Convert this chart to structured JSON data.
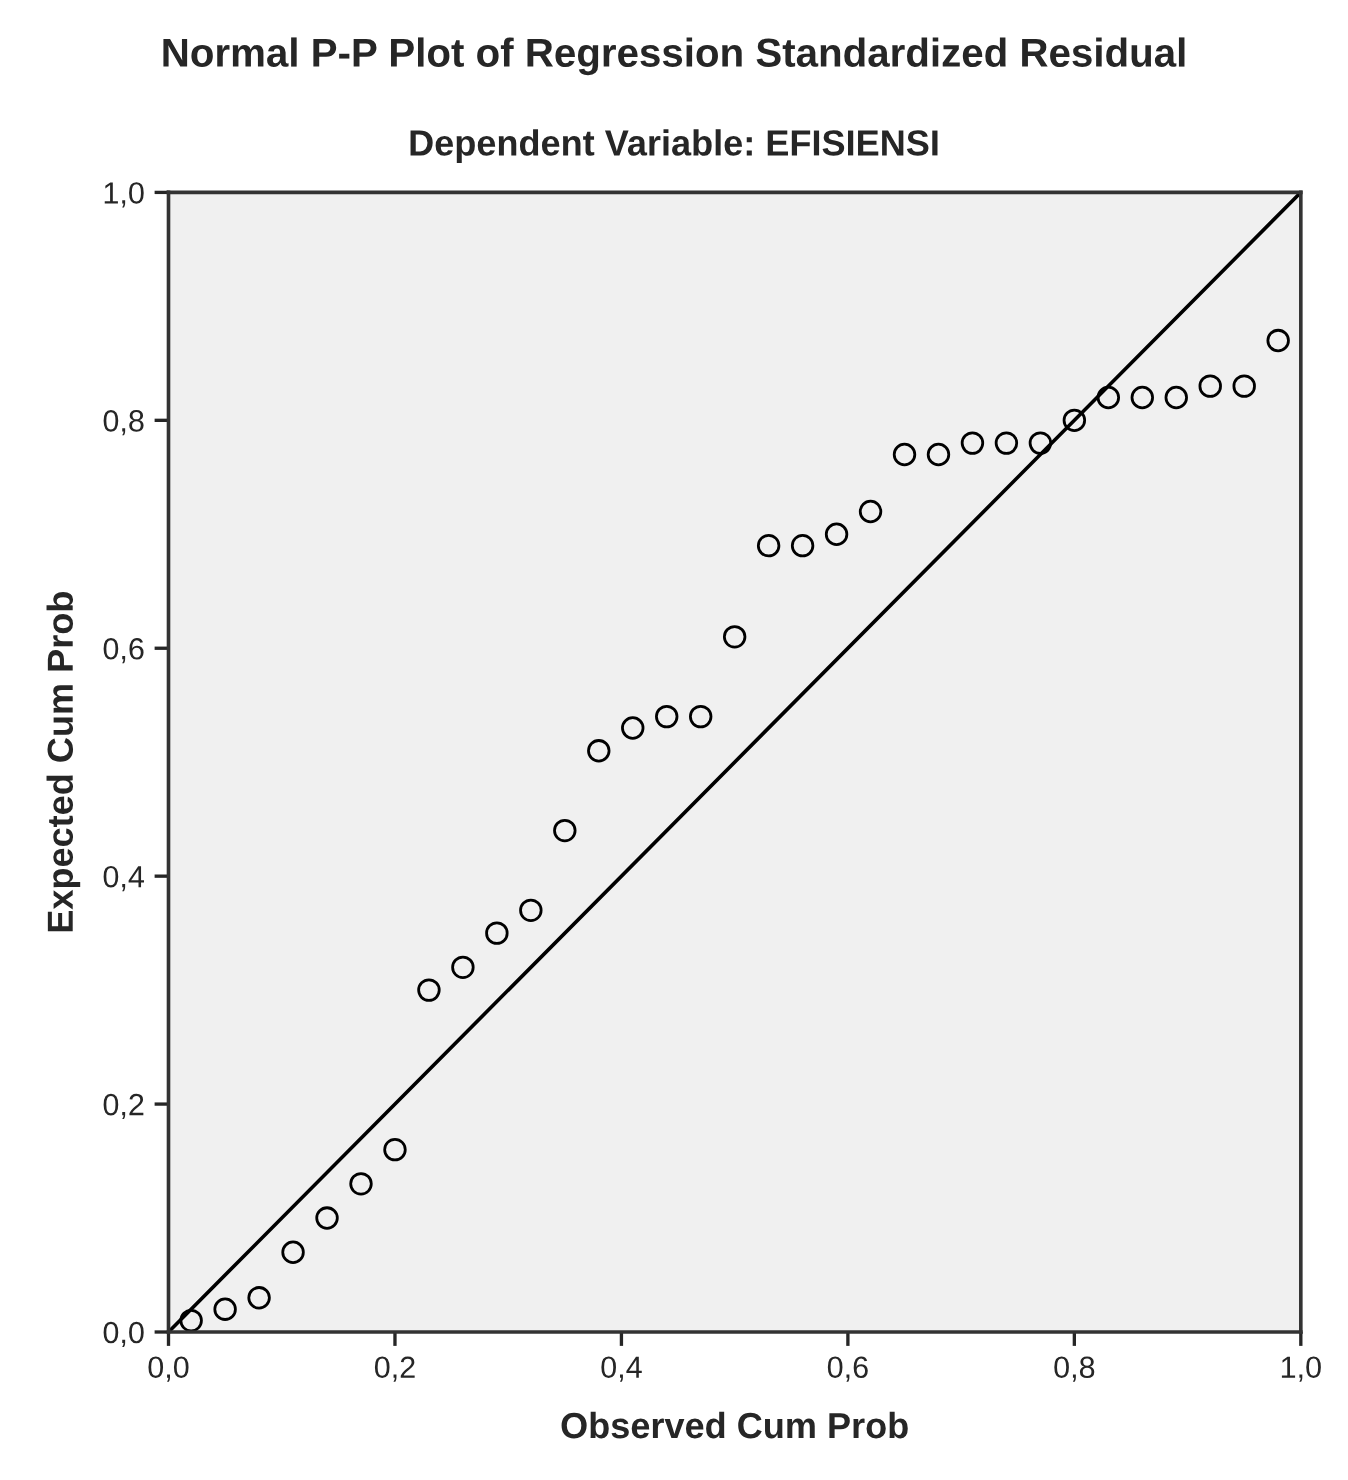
{
  "chart_data": {
    "type": "scatter",
    "title": "Normal P-P Plot of Regression Standardized Residual",
    "subtitle": "Dependent Variable: EFISIENSI",
    "xlabel": "Observed Cum Prob",
    "ylabel": "Expected Cum Prob",
    "series": [
      {
        "color": "#000000",
        "marker": "circle",
        "x": [
          0.02,
          0.05,
          0.08,
          0.11,
          0.14,
          0.17,
          0.2,
          0.23,
          0.26,
          0.29,
          0.32,
          0.35,
          0.38,
          0.41,
          0.44,
          0.47,
          0.5,
          0.53,
          0.56,
          0.59,
          0.62,
          0.65,
          0.68,
          0.71,
          0.74,
          0.77,
          0.8,
          0.83,
          0.86,
          0.89,
          0.92,
          0.95,
          0.98
        ],
        "values": [
          0.01,
          0.02,
          0.03,
          0.07,
          0.1,
          0.13,
          0.16,
          0.3,
          0.32,
          0.35,
          0.37,
          0.44,
          0.51,
          0.53,
          0.54,
          0.54,
          0.61,
          0.69,
          0.69,
          0.7,
          0.72,
          0.77,
          0.77,
          0.78,
          0.78,
          0.78,
          0.8,
          0.82,
          0.82,
          0.82,
          0.83,
          0.83,
          0.87
        ]
      },
      {
        "type": "line",
        "color": "#000000",
        "x": [
          0,
          1
        ],
        "values": [
          0,
          1
        ]
      }
    ],
    "xlim": [
      0,
      1
    ],
    "ylim": [
      0,
      1
    ],
    "xticks": [
      {
        "value": 0,
        "label": "0,0"
      },
      {
        "value": 0.2,
        "label": "0,2"
      },
      {
        "value": 0.4,
        "label": "0,4"
      },
      {
        "value": 0.6,
        "label": "0,6"
      },
      {
        "value": 0.8,
        "label": "0,8"
      },
      {
        "value": 1,
        "label": "1,0"
      }
    ],
    "yticks": [
      {
        "value": 0,
        "label": "0,0"
      },
      {
        "value": 0.2,
        "label": "0,2"
      },
      {
        "value": 0.4,
        "label": "0,4"
      },
      {
        "value": 0.6,
        "label": "0,6"
      },
      {
        "value": 0.8,
        "label": "0,8"
      },
      {
        "value": 1,
        "label": "1,0"
      }
    ],
    "grid": false,
    "legend": false
  }
}
